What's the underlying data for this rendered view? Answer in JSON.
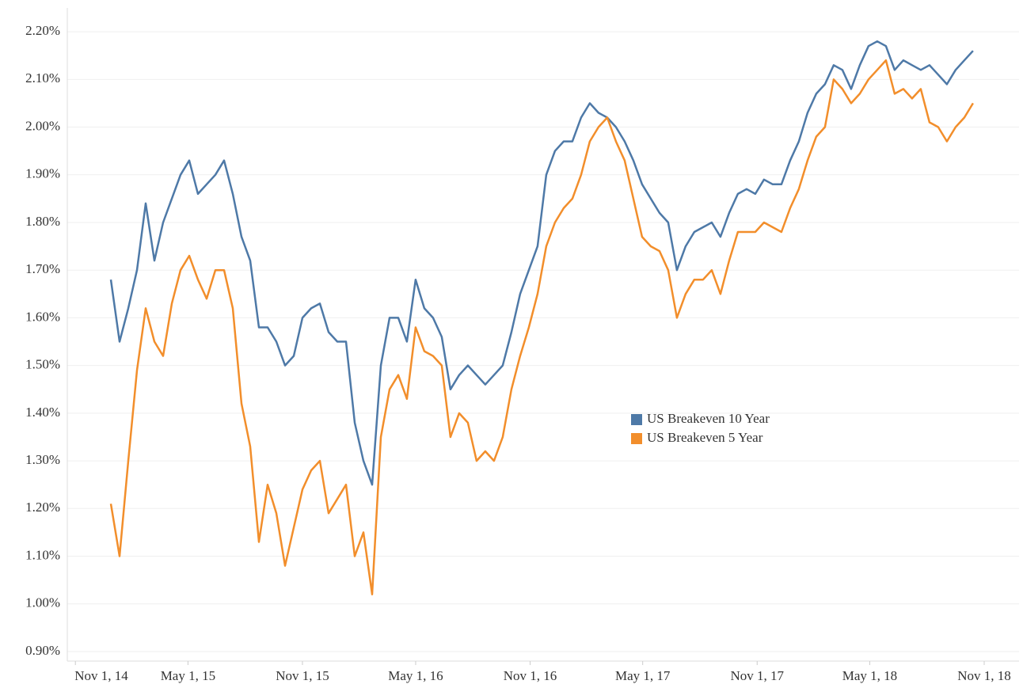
{
  "chart_data": {
    "type": "line",
    "x": [
      "2014-12-28",
      "2015-01-11",
      "2015-01-25",
      "2015-02-08",
      "2015-02-22",
      "2015-03-08",
      "2015-03-22",
      "2015-04-05",
      "2015-04-19",
      "2015-05-03",
      "2015-05-17",
      "2015-05-31",
      "2015-06-14",
      "2015-06-28",
      "2015-07-12",
      "2015-07-26",
      "2015-08-09",
      "2015-08-23",
      "2015-09-06",
      "2015-09-20",
      "2015-10-04",
      "2015-10-18",
      "2015-11-01",
      "2015-11-15",
      "2015-11-29",
      "2015-12-13",
      "2015-12-27",
      "2016-01-10",
      "2016-01-24",
      "2016-02-07",
      "2016-02-21",
      "2016-03-06",
      "2016-03-20",
      "2016-04-03",
      "2016-04-17",
      "2016-05-01",
      "2016-05-15",
      "2016-05-29",
      "2016-06-12",
      "2016-06-26",
      "2016-07-10",
      "2016-07-24",
      "2016-08-07",
      "2016-08-21",
      "2016-09-04",
      "2016-09-18",
      "2016-10-02",
      "2016-10-16",
      "2016-10-30",
      "2016-11-13",
      "2016-11-27",
      "2016-12-11",
      "2016-12-25",
      "2017-01-08",
      "2017-01-22",
      "2017-02-05",
      "2017-02-19",
      "2017-03-05",
      "2017-03-19",
      "2017-04-02",
      "2017-04-16",
      "2017-04-30",
      "2017-05-14",
      "2017-05-28",
      "2017-06-11",
      "2017-06-25",
      "2017-07-09",
      "2017-07-23",
      "2017-08-06",
      "2017-08-20",
      "2017-09-03",
      "2017-09-17",
      "2017-10-01",
      "2017-10-15",
      "2017-10-29",
      "2017-11-12",
      "2017-11-26",
      "2017-12-10",
      "2017-12-24",
      "2018-01-07",
      "2018-01-21",
      "2018-02-04",
      "2018-02-18",
      "2018-03-04",
      "2018-03-18",
      "2018-04-01",
      "2018-04-15",
      "2018-04-29",
      "2018-05-13",
      "2018-05-27",
      "2018-06-10",
      "2018-06-24",
      "2018-07-08",
      "2018-07-22",
      "2018-08-05",
      "2018-08-19",
      "2018-09-02",
      "2018-09-16",
      "2018-09-30",
      "2018-10-14"
    ],
    "series": [
      {
        "name": "US Breakeven 10 Year",
        "color": "#4e79a7",
        "values": [
          1.68,
          1.55,
          1.62,
          1.7,
          1.84,
          1.72,
          1.8,
          1.85,
          1.9,
          1.93,
          1.86,
          1.88,
          1.9,
          1.93,
          1.86,
          1.77,
          1.72,
          1.58,
          1.58,
          1.55,
          1.5,
          1.52,
          1.6,
          1.62,
          1.63,
          1.57,
          1.55,
          1.55,
          1.38,
          1.3,
          1.25,
          1.5,
          1.6,
          1.6,
          1.55,
          1.68,
          1.62,
          1.6,
          1.56,
          1.45,
          1.48,
          1.5,
          1.48,
          1.46,
          1.48,
          1.5,
          1.57,
          1.65,
          1.7,
          1.75,
          1.9,
          1.95,
          1.97,
          1.97,
          2.02,
          2.05,
          2.03,
          2.02,
          2.0,
          1.97,
          1.93,
          1.88,
          1.85,
          1.82,
          1.8,
          1.7,
          1.75,
          1.78,
          1.79,
          1.8,
          1.77,
          1.82,
          1.86,
          1.87,
          1.86,
          1.89,
          1.88,
          1.88,
          1.93,
          1.97,
          2.03,
          2.07,
          2.09,
          2.13,
          2.12,
          2.08,
          2.13,
          2.17,
          2.18,
          2.17,
          2.12,
          2.14,
          2.13,
          2.12,
          2.13,
          2.11,
          2.09,
          2.12,
          2.14,
          2.16
        ]
      },
      {
        "name": "US Breakeven 5 Year",
        "color": "#f28e2b",
        "values": [
          1.21,
          1.1,
          1.3,
          1.49,
          1.62,
          1.55,
          1.52,
          1.63,
          1.7,
          1.73,
          1.68,
          1.64,
          1.7,
          1.7,
          1.62,
          1.42,
          1.33,
          1.13,
          1.25,
          1.19,
          1.08,
          1.16,
          1.24,
          1.28,
          1.3,
          1.19,
          1.22,
          1.25,
          1.1,
          1.15,
          1.02,
          1.35,
          1.45,
          1.48,
          1.43,
          1.58,
          1.53,
          1.52,
          1.5,
          1.35,
          1.4,
          1.38,
          1.3,
          1.32,
          1.3,
          1.35,
          1.45,
          1.52,
          1.58,
          1.65,
          1.75,
          1.8,
          1.83,
          1.85,
          1.9,
          1.97,
          2.0,
          2.02,
          1.97,
          1.93,
          1.85,
          1.77,
          1.75,
          1.74,
          1.7,
          1.6,
          1.65,
          1.68,
          1.68,
          1.7,
          1.65,
          1.72,
          1.78,
          1.78,
          1.78,
          1.8,
          1.79,
          1.78,
          1.83,
          1.87,
          1.93,
          1.98,
          2.0,
          2.1,
          2.08,
          2.05,
          2.07,
          2.1,
          2.12,
          2.14,
          2.07,
          2.08,
          2.06,
          2.08,
          2.01,
          2.0,
          1.97,
          2.0,
          2.02,
          2.05
        ]
      }
    ],
    "xlim": [
      "2014-10-19",
      "2018-12-27"
    ],
    "xticks": [
      {
        "value": "2014-11-01",
        "label": "Nov 1, 14"
      },
      {
        "value": "2015-05-01",
        "label": "May 1, 15"
      },
      {
        "value": "2015-11-01",
        "label": "Nov 1, 15"
      },
      {
        "value": "2016-05-01",
        "label": "May 1, 16"
      },
      {
        "value": "2016-11-01",
        "label": "Nov 1, 16"
      },
      {
        "value": "2017-05-01",
        "label": "May 1, 17"
      },
      {
        "value": "2017-11-01",
        "label": "Nov 1, 17"
      },
      {
        "value": "2018-05-01",
        "label": "May 1, 18"
      },
      {
        "value": "2018-11-01",
        "label": "Nov 1, 18"
      }
    ],
    "ylim": [
      0.88,
      2.25
    ],
    "yticks": [
      {
        "value": 0.9,
        "label": "0.90%"
      },
      {
        "value": 1.0,
        "label": "1.00%"
      },
      {
        "value": 1.1,
        "label": "1.10%"
      },
      {
        "value": 1.2,
        "label": "1.20%"
      },
      {
        "value": 1.3,
        "label": "1.30%"
      },
      {
        "value": 1.4,
        "label": "1.40%"
      },
      {
        "value": 1.5,
        "label": "1.50%"
      },
      {
        "value": 1.6,
        "label": "1.60%"
      },
      {
        "value": 1.7,
        "label": "1.70%"
      },
      {
        "value": 1.8,
        "label": "1.80%"
      },
      {
        "value": 1.9,
        "label": "1.90%"
      },
      {
        "value": 2.0,
        "label": "2.00%"
      },
      {
        "value": 2.1,
        "label": "2.10%"
      },
      {
        "value": 2.2,
        "label": "2.20%"
      }
    ],
    "grid": true,
    "legend": "center"
  }
}
